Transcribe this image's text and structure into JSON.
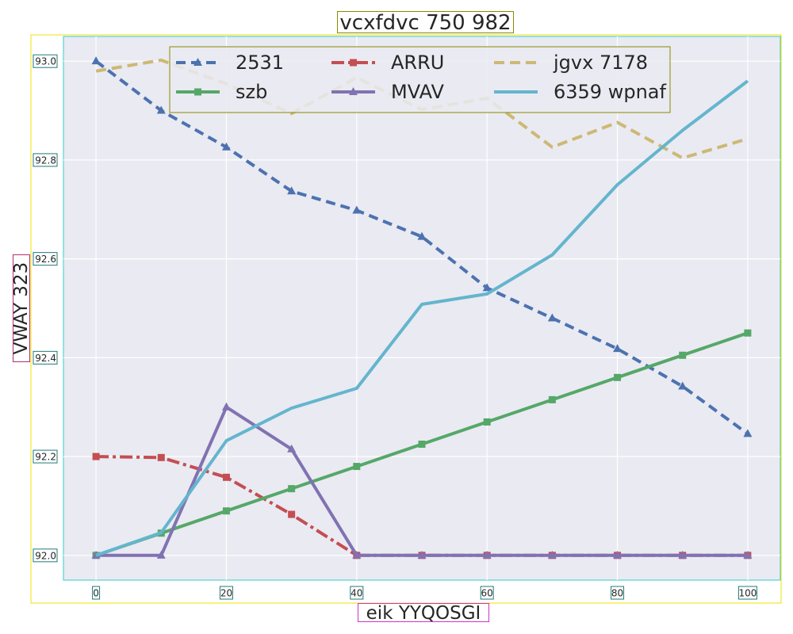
{
  "chart_data": {
    "type": "line",
    "title": "vcxfdvc 750 982",
    "xlabel": "eik YYQOSGI",
    "ylabel": "VWAY 323",
    "xlim": [
      -5,
      105
    ],
    "ylim": [
      91.95,
      93.05
    ],
    "x": [
      0,
      10,
      20,
      30,
      40,
      50,
      60,
      70,
      80,
      90,
      100
    ],
    "x_ticks": [
      0,
      20,
      40,
      60,
      80,
      100
    ],
    "y_ticks": [
      92.0,
      92.2,
      92.4,
      92.6,
      92.8,
      93.0
    ],
    "grid": true,
    "legend_position": "top",
    "series": [
      {
        "name": "2531",
        "color": "#4c72b0",
        "dash": "12,7",
        "marker": "triangle",
        "values": [
          93.0,
          92.9,
          92.826,
          92.737,
          92.698,
          92.645,
          92.541,
          92.48,
          92.418,
          92.342,
          92.246
        ]
      },
      {
        "name": "ARRU",
        "color": "#c44e52",
        "dash": "16,5,4,5",
        "marker": "square",
        "values": [
          92.2,
          92.198,
          92.158,
          92.083,
          92.0,
          92.0,
          92.0,
          92.0,
          92.0,
          92.0,
          92.0
        ]
      },
      {
        "name": "jgvx 7178",
        "color": "#ccb974",
        "dash": "13,7",
        "marker": "none",
        "values": [
          92.98,
          93.002,
          92.954,
          92.894,
          92.967,
          92.902,
          92.925,
          92.826,
          92.876,
          92.804,
          92.843
        ]
      },
      {
        "name": "szb",
        "color": "#55a868",
        "dash": "",
        "marker": "square",
        "values": [
          92.0,
          92.045,
          92.09,
          92.135,
          92.18,
          92.225,
          92.27,
          92.315,
          92.36,
          92.405,
          92.45
        ]
      },
      {
        "name": "MVAV",
        "color": "#8172b2",
        "dash": "",
        "marker": "triangle",
        "values": [
          92.0,
          92.0,
          92.3,
          92.215,
          92.0,
          92.0,
          92.0,
          92.0,
          92.0,
          92.0,
          92.0
        ]
      },
      {
        "name": "6359 wpnaf",
        "color": "#64b5cd",
        "dash": "",
        "marker": "none",
        "values": [
          92.0,
          92.046,
          92.232,
          92.298,
          92.338,
          92.508,
          92.529,
          92.608,
          92.75,
          92.86,
          92.96
        ]
      }
    ]
  }
}
